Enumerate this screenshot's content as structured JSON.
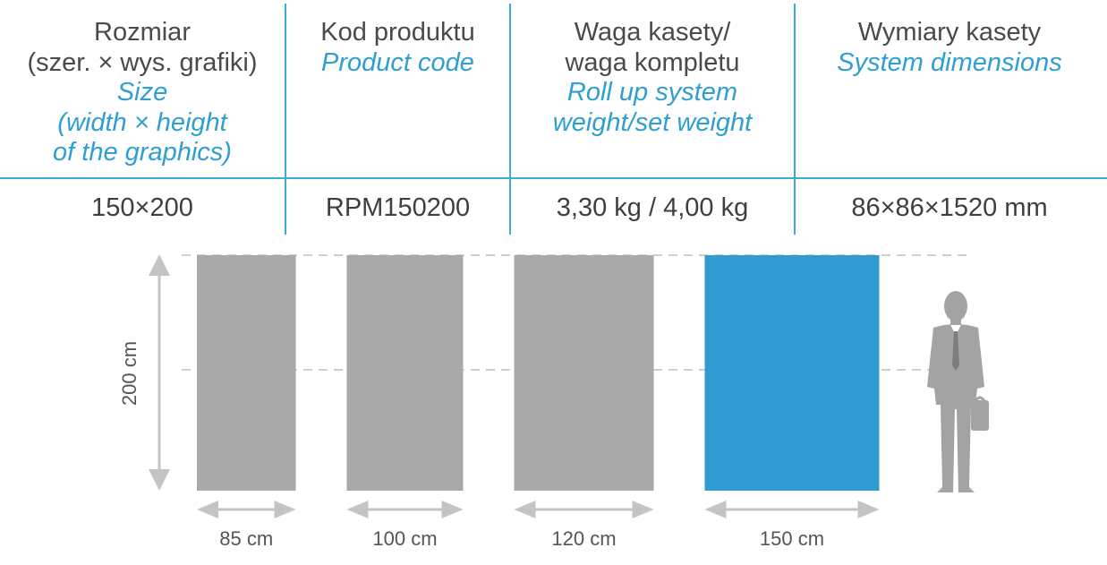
{
  "table": {
    "columns": [
      {
        "header_pl": [
          "Rozmiar",
          "(szer. × wys. grafiki)"
        ],
        "header_en": [
          "Size",
          "(width × height",
          "of the graphics)"
        ],
        "value": "150×200"
      },
      {
        "header_pl": [
          "Kod produktu"
        ],
        "header_en": [
          "Product code"
        ],
        "value": "RPM150200"
      },
      {
        "header_pl": [
          "Waga kasety/",
          "waga kompletu"
        ],
        "header_en": [
          "Roll up system",
          "weight/set weight"
        ],
        "value": "3,30 kg / 4,00 kg"
      },
      {
        "header_pl": [
          "Wymiary kasety"
        ],
        "header_en": [
          "System dimensions"
        ],
        "value": "86×86×1520 mm"
      }
    ]
  },
  "diagram": {
    "height_label": "200 cm",
    "height_value_cm": 200,
    "banners": [
      {
        "width_cm": 85,
        "label": "85 cm",
        "color": "#a9a9a9",
        "highlighted": false
      },
      {
        "width_cm": 100,
        "label": "100 cm",
        "color": "#a9a9a9",
        "highlighted": false
      },
      {
        "width_cm": 120,
        "label": "120 cm",
        "color": "#a9a9a9",
        "highlighted": false
      },
      {
        "width_cm": 150,
        "label": "150 cm",
        "color": "#2f9bd1",
        "highlighted": true
      }
    ],
    "person_icon": "businessman-silhouette-icon"
  },
  "colors": {
    "accent": "#3aaed1",
    "highlight": "#2f9bd1",
    "gray_banner": "#a9a9a9",
    "arrow_gray": "#c4c4c4"
  }
}
